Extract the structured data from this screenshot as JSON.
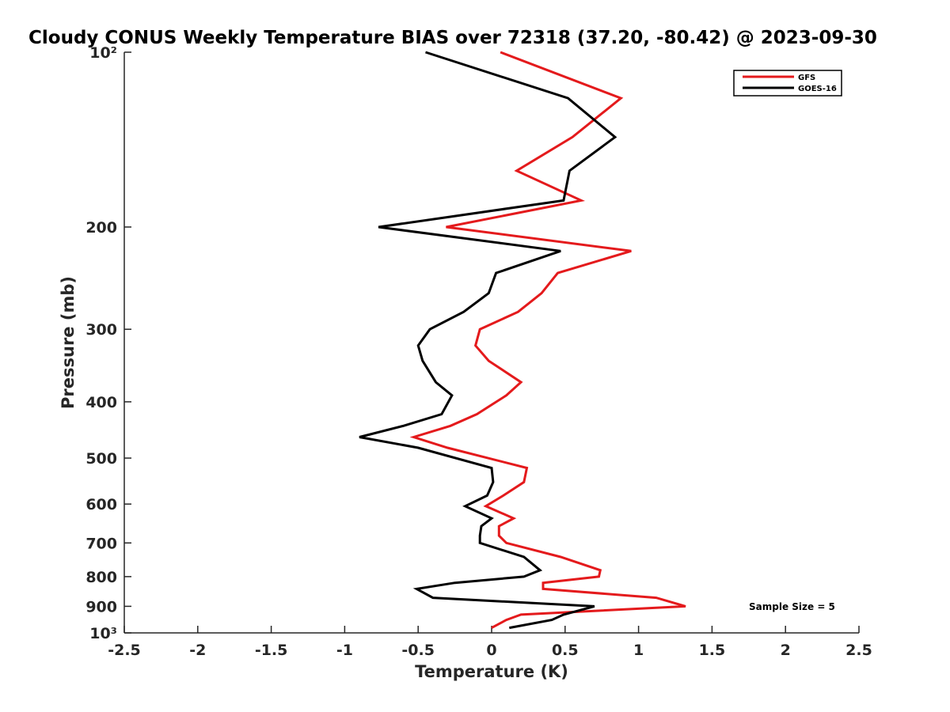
{
  "chart_data": {
    "type": "line",
    "title": "Cloudy CONUS Weekly Temperature BIAS over 72318 (37.20, -80.42) @ 2023-09-30",
    "xlabel": "Temperature (K)",
    "ylabel": "Pressure (mb)",
    "xlim": [
      -2.5,
      2.5
    ],
    "ylim": [
      100,
      1000
    ],
    "yscale": "log",
    "y_reversed": true,
    "x_ticks": [
      -2.5,
      -2,
      -1.5,
      -1,
      -0.5,
      0,
      0.5,
      1,
      1.5,
      2,
      2.5
    ],
    "x_tick_labels": [
      "-2.5",
      "-2",
      "-1.5",
      "-1",
      "-0.5",
      "0",
      "0.5",
      "1",
      "1.5",
      "2",
      "2.5"
    ],
    "y_ticks": [
      100,
      200,
      300,
      400,
      500,
      600,
      700,
      800,
      900,
      1000
    ],
    "y_tick_labels": [
      "10²",
      "200",
      "300",
      "400",
      "500",
      "600",
      "700",
      "800",
      "900",
      "10³"
    ],
    "legend_position": "top-right",
    "annotation": "Sample Size = 5",
    "series": [
      {
        "name": "GFS",
        "color": "#e41a1c",
        "x": [
          0.06,
          0.88,
          0.55,
          0.17,
          0.61,
          -0.31,
          0.95,
          0.45,
          0.34,
          0.18,
          -0.08,
          -0.11,
          -0.02,
          0.2,
          0.1,
          -0.1,
          -0.28,
          -0.53,
          -0.3,
          0.24,
          0.22,
          0.08,
          -0.04,
          0.15,
          0.05,
          0.05,
          0.1,
          0.47,
          0.74,
          0.73,
          0.35,
          0.35,
          1.12,
          1.32,
          0.2,
          0.1,
          0.0
        ],
        "y": [
          100,
          120,
          140,
          160,
          180,
          200,
          220,
          240,
          260,
          280,
          300,
          320,
          340,
          370,
          390,
          420,
          440,
          460,
          480,
          520,
          550,
          580,
          605,
          635,
          655,
          680,
          700,
          740,
          780,
          800,
          820,
          840,
          870,
          900,
          930,
          950,
          980
        ]
      },
      {
        "name": "GOES-16",
        "color": "#000000",
        "x": [
          -0.45,
          0.52,
          0.84,
          0.53,
          0.49,
          -0.77,
          0.47,
          0.03,
          -0.02,
          -0.19,
          -0.42,
          -0.5,
          -0.47,
          -0.38,
          -0.27,
          -0.34,
          -0.6,
          -0.9,
          -0.5,
          0.0,
          0.01,
          -0.03,
          -0.18,
          0.0,
          -0.07,
          -0.08,
          -0.08,
          0.22,
          0.33,
          0.22,
          -0.25,
          -0.51,
          -0.4,
          0.7,
          0.49,
          0.41,
          0.12
        ],
        "y": [
          100,
          120,
          140,
          160,
          180,
          200,
          220,
          240,
          260,
          280,
          300,
          320,
          340,
          370,
          390,
          420,
          440,
          460,
          480,
          520,
          550,
          580,
          605,
          635,
          655,
          680,
          700,
          740,
          780,
          800,
          820,
          840,
          870,
          900,
          930,
          950,
          980
        ]
      }
    ]
  }
}
